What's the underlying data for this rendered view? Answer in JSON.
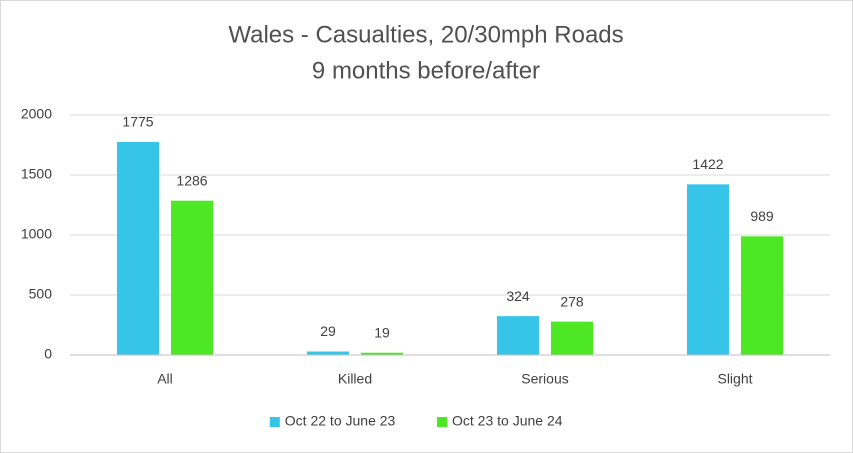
{
  "chart_data": {
    "type": "bar",
    "title": "Wales - Casualties, 20/30mph Roads",
    "subtitle": "9 months before/after",
    "categories": [
      "All",
      "Killed",
      "Serious",
      "Slight"
    ],
    "series": [
      {
        "name": "Oct 22 to June 23",
        "color": "#36c5e8",
        "values": [
          1775,
          29,
          324,
          1422
        ]
      },
      {
        "name": "Oct 23 to June 24",
        "color": "#4de823",
        "values": [
          1286,
          19,
          278,
          989
        ]
      }
    ],
    "ylim": [
      0,
      2000
    ],
    "yticks": [
      0,
      500,
      1000,
      1500,
      2000
    ],
    "grid": true,
    "legend": "bottom"
  }
}
